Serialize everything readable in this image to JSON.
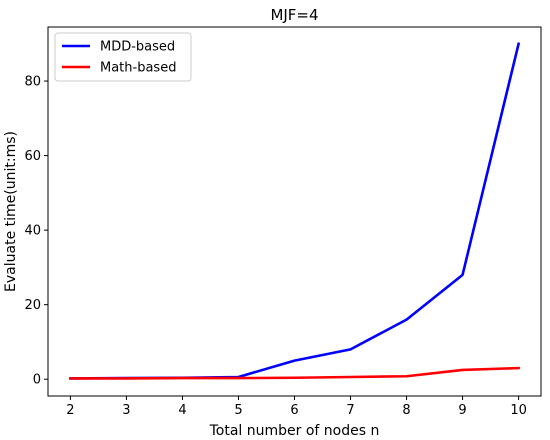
{
  "chart_data": {
    "type": "line",
    "title": "MJF=4",
    "xlabel": "Total number of nodes n",
    "ylabel": "Evaluate time(unit:ms)",
    "x": [
      2,
      3,
      4,
      5,
      6,
      7,
      8,
      9,
      10
    ],
    "xlim": [
      1.6,
      10.4
    ],
    "ylim": [
      -4.5,
      94.5
    ],
    "xticks": [
      2,
      3,
      4,
      5,
      6,
      7,
      8,
      9,
      10
    ],
    "yticks": [
      0,
      20,
      40,
      60,
      80
    ],
    "grid": false,
    "legend_position": "top-left",
    "series": [
      {
        "name": "MDD-based",
        "color": "#0000ff",
        "values": [
          0.2,
          0.3,
          0.4,
          0.6,
          5.0,
          8.0,
          16.0,
          28.0,
          90.0
        ]
      },
      {
        "name": "Math-based",
        "color": "#ff0000",
        "values": [
          0.2,
          0.2,
          0.3,
          0.3,
          0.4,
          0.6,
          0.8,
          2.5,
          3.0
        ]
      }
    ]
  }
}
